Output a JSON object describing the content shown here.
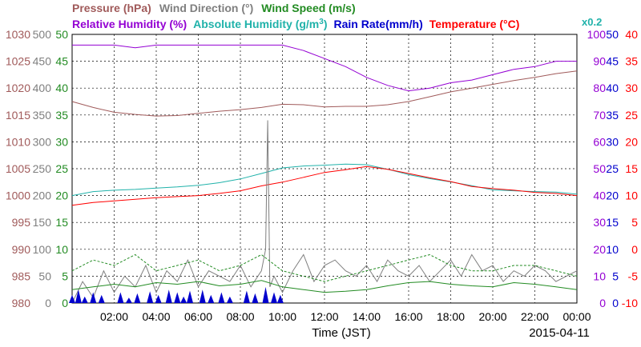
{
  "chart_data": {
    "type": "line",
    "date_label": "2015-04-11",
    "xlabel": "Time (JST)",
    "x_ticks": [
      "02:00",
      "04:00",
      "06:00",
      "08:00",
      "10:00",
      "12:00",
      "14:00",
      "16:00",
      "18:00",
      "20:00",
      "22:00",
      "00:00"
    ],
    "grid": true,
    "legend": {
      "row1": [
        {
          "text": "Pressure (hPa)",
          "color": "#a05a5a"
        },
        {
          "text": "Wind Direction (°)",
          "color": "#7f7f7f"
        },
        {
          "text": "Wind Speed (m/s)",
          "color": "#228b22"
        }
      ],
      "row2": [
        {
          "text": "Relative Humidity (%)",
          "color": "#9400d3"
        },
        {
          "text": "Absolute Humidity (g/m",
          "sup": "3",
          "close": ")",
          "color": "#20b2aa"
        },
        {
          "text": "Rain Rate(mm/h)",
          "color": "#0000cd"
        },
        {
          "text": "Temperature (°C)",
          "color": "#ff0000"
        }
      ],
      "abs_multiplier": "x0.2"
    },
    "axes": {
      "pressure": {
        "labels": [
          "1030",
          "1025",
          "1020",
          "1015",
          "1010",
          "1005",
          "1000",
          "995",
          "990",
          "985",
          "980"
        ],
        "range": [
          980,
          1030
        ],
        "color": "#a05a5a"
      },
      "wind_direction": {
        "labels": [
          "500",
          "450",
          "400",
          "350",
          "300",
          "250",
          "200",
          "150",
          "100",
          "50",
          "0"
        ],
        "range": [
          0,
          500
        ],
        "color": "#7f7f7f"
      },
      "wind_speed": {
        "labels": [
          "50",
          "45",
          "40",
          "35",
          "30",
          "25",
          "20",
          "15",
          "10",
          "5",
          "0"
        ],
        "range": [
          0,
          50
        ],
        "color": "#228b22"
      },
      "humidity": {
        "labels": [
          "100",
          "90",
          "80",
          "70",
          "60",
          "50",
          "40",
          "30",
          "20",
          "10",
          "0"
        ],
        "range": [
          0,
          100
        ],
        "color": "#9400d3"
      },
      "rain_rate": {
        "labels": [
          "50",
          "45",
          "40",
          "35",
          "30",
          "25",
          "20",
          "15",
          "10",
          "5",
          "0"
        ],
        "range": [
          0,
          50
        ],
        "color": "#0000cd"
      },
      "temperature": {
        "labels": [
          "40",
          "35",
          "30",
          "25",
          "20",
          "15",
          "10",
          "5",
          "0",
          "-5",
          "-10"
        ],
        "range": [
          -10,
          40
        ],
        "color": "#ff0000"
      }
    },
    "series": [
      {
        "name": "Pressure (hPa)",
        "axis": "pressure",
        "color": "#a05a5a",
        "x": [
          0,
          1,
          2,
          3,
          4,
          5,
          6,
          7,
          8,
          9,
          10,
          11,
          12,
          13,
          14,
          15,
          16,
          17,
          18,
          19,
          20,
          21,
          22,
          23,
          24
        ],
        "values": [
          1017.5,
          1016.4,
          1015.5,
          1015.1,
          1014.8,
          1014.9,
          1015.3,
          1015.7,
          1016.0,
          1016.4,
          1017.0,
          1016.9,
          1016.5,
          1016.6,
          1016.6,
          1016.9,
          1017.5,
          1018.4,
          1019.3,
          1020.0,
          1020.7,
          1021.4,
          1022.0,
          1022.7,
          1023.2
        ]
      },
      {
        "name": "Relative Humidity (%)",
        "axis": "humidity",
        "color": "#9400d3",
        "x": [
          0,
          1,
          2,
          3,
          4,
          5,
          6,
          7,
          8,
          9,
          10,
          11,
          12,
          13,
          14,
          15,
          16,
          17,
          18,
          19,
          20,
          21,
          22,
          23,
          24
        ],
        "values": [
          96,
          96,
          96,
          95,
          96,
          96,
          96,
          96,
          96,
          96,
          96,
          94,
          91,
          88,
          84,
          81,
          79,
          80,
          82,
          83,
          85,
          87,
          88,
          90,
          90
        ]
      },
      {
        "name": "Absolute Humidity (g/m3)",
        "axis": "humidity",
        "color": "#20b2aa",
        "x": [
          0,
          1,
          2,
          3,
          4,
          5,
          6,
          7,
          8,
          9,
          10,
          11,
          12,
          13,
          14,
          15,
          16,
          17,
          18,
          19,
          20,
          21,
          22,
          23,
          24
        ],
        "values": [
          40,
          41.5,
          42,
          42.3,
          42.8,
          43.2,
          43.8,
          44.8,
          46.2,
          48.2,
          50.3,
          51,
          51.3,
          51.7,
          51.5,
          49.8,
          47.8,
          46.3,
          45.1,
          43.7,
          42.1,
          41.8,
          41.5,
          41.3,
          40.5
        ]
      },
      {
        "name": "Temperature (°C)",
        "axis": "temperature",
        "color": "#ff0000",
        "x": [
          0,
          1,
          2,
          3,
          4,
          5,
          6,
          7,
          8,
          9,
          10,
          11,
          12,
          13,
          14,
          15,
          16,
          17,
          18,
          19,
          20,
          21,
          22,
          23,
          24
        ],
        "values": [
          8.2,
          8.7,
          9.0,
          9.3,
          9.6,
          9.8,
          10.0,
          10.4,
          10.9,
          11.8,
          12.5,
          13.4,
          14.3,
          14.8,
          15.4,
          14.9,
          14.1,
          13.3,
          12.6,
          11.7,
          11.3,
          11.0,
          10.6,
          10.4,
          10.0
        ]
      },
      {
        "name": "Wind Direction (°)",
        "axis": "wind_direction",
        "color": "#7f7f7f",
        "x": [
          0,
          0.5,
          1,
          1.5,
          2,
          2.5,
          3,
          3.5,
          4,
          4.5,
          5,
          5.5,
          6,
          6.5,
          7,
          7.5,
          8,
          8.5,
          9,
          9.2,
          9.3,
          9.4,
          9.6,
          10,
          10.5,
          11,
          11.5,
          12,
          12.5,
          13,
          13.5,
          14,
          14.5,
          15,
          15.5,
          16,
          16.5,
          17,
          17.5,
          18,
          18.5,
          19,
          19.5,
          20,
          20.5,
          21,
          21.5,
          22,
          22.5,
          23,
          23.5,
          24
        ],
        "values": [
          0,
          40,
          10,
          60,
          20,
          50,
          30,
          70,
          20,
          60,
          40,
          80,
          30,
          60,
          50,
          40,
          70,
          30,
          60,
          100,
          340,
          30,
          50,
          20,
          60,
          90,
          40,
          70,
          80,
          60,
          50,
          70,
          40,
          80,
          60,
          50,
          70,
          40,
          60,
          80,
          50,
          90,
          60,
          70,
          40,
          60,
          50,
          70,
          60,
          40,
          50,
          60
        ]
      },
      {
        "name": "Wind Speed (m/s)",
        "axis": "wind_speed",
        "color": "#228b22",
        "x": [
          0,
          1,
          2,
          3,
          4,
          5,
          6,
          7,
          8,
          9,
          10,
          11,
          12,
          13,
          14,
          15,
          16,
          17,
          18,
          19,
          20,
          21,
          22,
          23,
          24
        ],
        "values": [
          2.5,
          3.0,
          3.5,
          3.0,
          3.8,
          3.5,
          4.0,
          3.2,
          3.5,
          4.2,
          3.0,
          2.5,
          2.0,
          2.2,
          2.5,
          3.2,
          3.8,
          4.0,
          3.5,
          3.2,
          3.0,
          3.8,
          3.5,
          3.0,
          2.5
        ]
      },
      {
        "name": "Wind Speed gust (m/s)",
        "axis": "wind_speed",
        "color": "#228b22",
        "dashed": true,
        "x": [
          0,
          1,
          2,
          3,
          4,
          5,
          6,
          7,
          8,
          9,
          10,
          11,
          12,
          13,
          14,
          15,
          16,
          17,
          18,
          19,
          20,
          21,
          22,
          23,
          24
        ],
        "values": [
          6,
          8,
          7,
          9,
          6,
          7,
          8,
          6,
          7,
          9,
          6,
          5,
          4,
          5,
          6,
          7,
          8,
          9,
          7,
          6,
          6,
          7,
          7,
          6,
          5
        ]
      },
      {
        "name": "Rain Rate(mm/h)",
        "axis": "rain_rate",
        "color": "#0000cd",
        "x": [
          0,
          0.3,
          0.6,
          1.0,
          1.4,
          2.3,
          2.7,
          3.1,
          3.7,
          4.1,
          4.6,
          5.0,
          5.3,
          5.6,
          6.2,
          6.6,
          7.1,
          7.5,
          8.3,
          8.7,
          9.2,
          9.6,
          9.9
        ],
        "values": [
          1.5,
          2.5,
          1.2,
          2.0,
          1.5,
          2.0,
          1.0,
          1.8,
          2.2,
          1.5,
          2.5,
          2.0,
          1.2,
          2.3,
          2.5,
          1.5,
          2.0,
          1.2,
          2.3,
          1.8,
          3.0,
          2.0,
          1.5
        ]
      }
    ]
  }
}
